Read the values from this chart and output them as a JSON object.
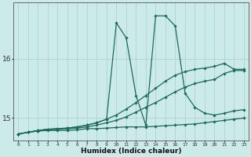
{
  "xlabel": "Humidex (Indice chaleur)",
  "ylabel": "",
  "bg_color": "#cceae8",
  "grid_color": "#aad4d0",
  "line_color": "#1a6b5a",
  "xlim": [
    -0.5,
    23.5
  ],
  "ylim": [
    14.62,
    16.95
  ],
  "yticks": [
    15,
    16
  ],
  "xticks": [
    0,
    1,
    2,
    3,
    4,
    5,
    6,
    7,
    8,
    9,
    10,
    11,
    12,
    13,
    14,
    15,
    16,
    17,
    18,
    19,
    20,
    21,
    22,
    23
  ],
  "series": [
    {
      "x": [
        0,
        1,
        2,
        3,
        4,
        5,
        6,
        7,
        8,
        9,
        10,
        11,
        12,
        13,
        14,
        15,
        16,
        17,
        18,
        19,
        20,
        21,
        22,
        23
      ],
      "y": [
        14.73,
        14.76,
        14.78,
        14.79,
        14.79,
        14.79,
        14.8,
        14.82,
        14.82,
        14.83,
        14.84,
        14.85,
        14.85,
        14.85,
        14.86,
        14.87,
        14.88,
        14.89,
        14.9,
        14.92,
        14.94,
        14.96,
        14.98,
        15.0
      ]
    },
    {
      "x": [
        0,
        1,
        2,
        3,
        4,
        5,
        6,
        7,
        8,
        9,
        10,
        11,
        12,
        13,
        14,
        15,
        16,
        17,
        18,
        19,
        20,
        21,
        22,
        23
      ],
      "y": [
        14.73,
        14.76,
        14.78,
        14.8,
        14.81,
        14.82,
        14.83,
        14.85,
        14.88,
        14.92,
        14.96,
        15.02,
        15.1,
        15.18,
        15.26,
        15.35,
        15.44,
        15.52,
        15.58,
        15.62,
        15.65,
        15.75,
        15.8,
        15.8
      ]
    },
    {
      "x": [
        0,
        1,
        2,
        3,
        4,
        5,
        6,
        7,
        8,
        9,
        10,
        11,
        12,
        13,
        14,
        15,
        16,
        17,
        18,
        19,
        20,
        21,
        22,
        23
      ],
      "y": [
        14.73,
        14.76,
        14.79,
        14.81,
        14.82,
        14.83,
        14.85,
        14.88,
        14.92,
        14.98,
        15.05,
        15.15,
        15.26,
        15.38,
        15.5,
        15.62,
        15.72,
        15.78,
        15.82,
        15.84,
        15.87,
        15.92,
        15.82,
        15.82
      ]
    },
    {
      "x": [
        0,
        1,
        2,
        3,
        4,
        5,
        6,
        7,
        8,
        9,
        10,
        11,
        12,
        13,
        14,
        15,
        16,
        17,
        18,
        19,
        20,
        21,
        22,
        23
      ],
      "y": [
        14.73,
        14.76,
        14.79,
        14.81,
        14.82,
        14.83,
        14.85,
        14.88,
        14.92,
        14.98,
        16.6,
        16.35,
        15.38,
        14.88,
        16.72,
        16.72,
        16.55,
        15.42,
        15.18,
        15.08,
        15.05,
        15.08,
        15.12,
        15.14
      ]
    }
  ]
}
